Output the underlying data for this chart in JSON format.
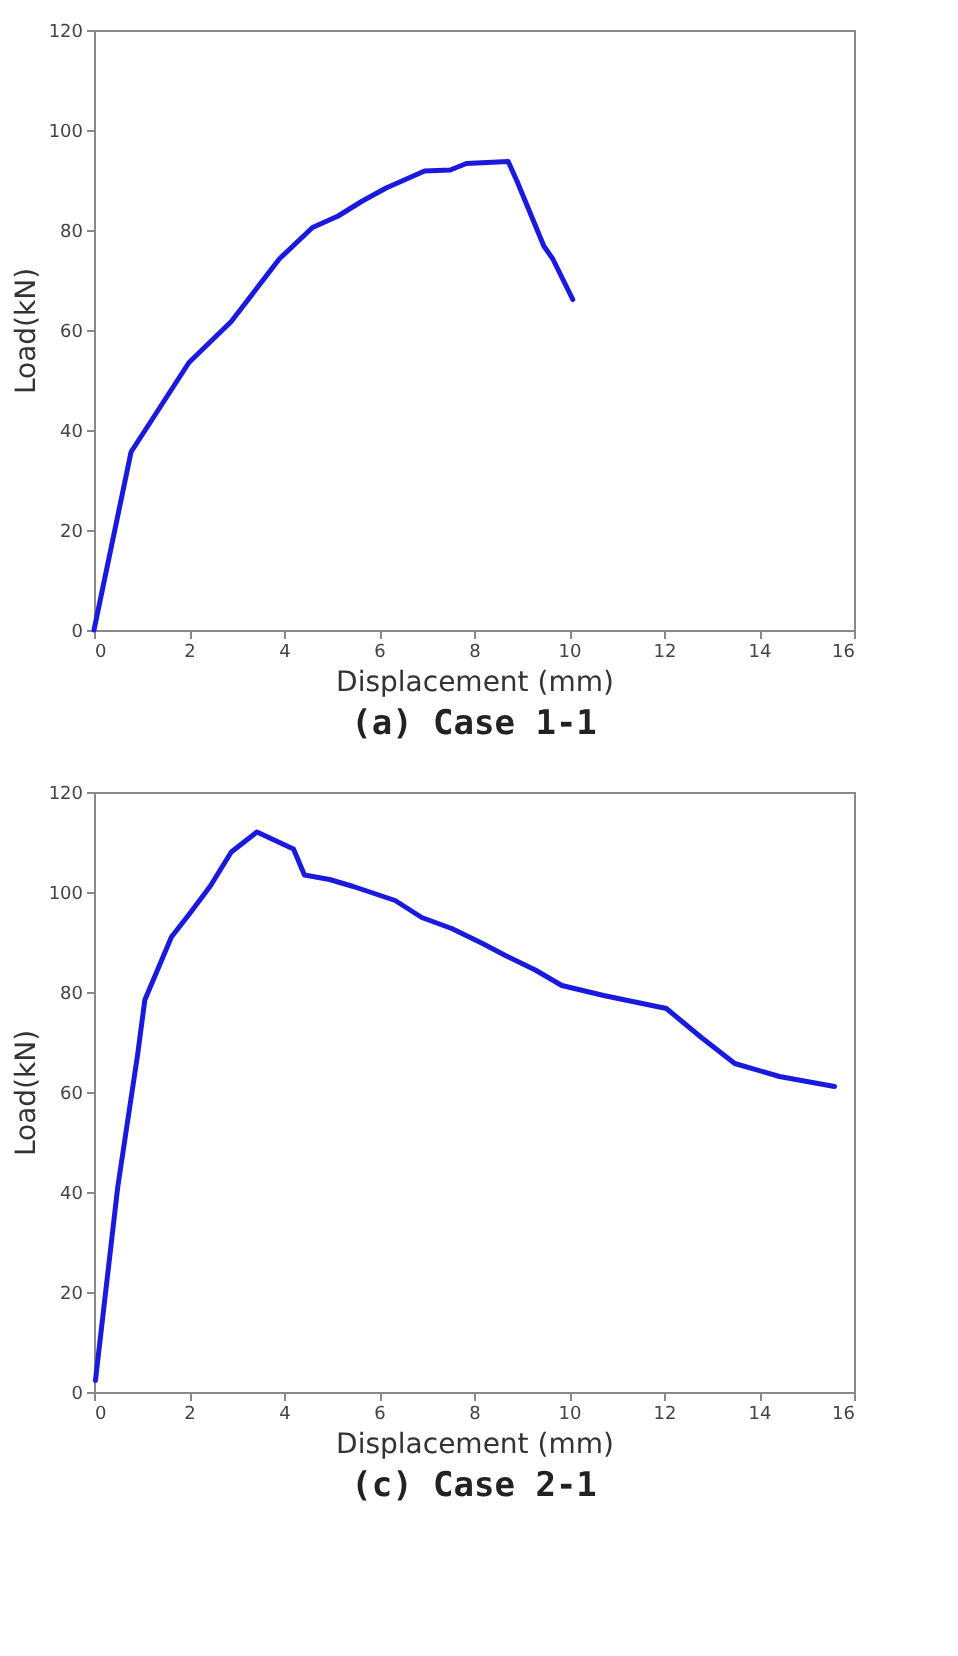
{
  "chart_data": [
    {
      "type": "line",
      "title": "(a) Case 1-1",
      "xlabel": "Displacement (mm)",
      "ylabel": "Load(kN)",
      "xlim": [
        0,
        16
      ],
      "ylim": [
        0,
        120
      ],
      "xticks": [
        0,
        2,
        4,
        6,
        8,
        10,
        12,
        14,
        16
      ],
      "yticks": [
        0,
        20,
        40,
        60,
        80,
        100,
        120
      ],
      "grid": false,
      "marker": "none",
      "line_style": "solid",
      "series": [
        {
          "color": "#1a1adc",
          "x": [
            0,
            0.78,
            2.0,
            2.89,
            3.9,
            4.6,
            5.14,
            5.65,
            6.15,
            6.96,
            7.5,
            7.84,
            8.72,
            8.9,
            9.47,
            9.66,
            10.08
          ],
          "values": [
            0,
            35.6,
            53.5,
            61.7,
            74.2,
            80.5,
            82.8,
            85.8,
            88.4,
            91.8,
            92,
            93.3,
            93.7,
            89.9,
            76.8,
            74.2,
            66.1
          ]
        }
      ]
    },
    {
      "type": "line",
      "title": "(c) Case 2-1",
      "xlabel": "Displacement (mm)",
      "ylabel": "Load(kN)",
      "xlim": [
        0,
        16
      ],
      "ylim": [
        0,
        120
      ],
      "xticks": [
        0,
        2,
        4,
        6,
        8,
        10,
        12,
        14,
        16
      ],
      "yticks": [
        0,
        20,
        40,
        60,
        80,
        100,
        120
      ],
      "grid": false,
      "marker": "none",
      "line_style": "solid",
      "series": [
        {
          "color": "#1a1adc",
          "x": [
            0.03,
            0.5,
            0.92,
            1.07,
            1.63,
            2.0,
            2.45,
            2.89,
            3.43,
            4.2,
            4.43,
            4.96,
            5.46,
            6.34,
            6.9,
            7.53,
            8.16,
            8.66,
            9.29,
            9.85,
            10.73,
            12.05,
            12.8,
            13.49,
            14.43,
            15.59
          ],
          "values": [
            2.3,
            41,
            67.6,
            78.4,
            91,
            95.5,
            101.2,
            108,
            112,
            108.6,
            103.4,
            102.5,
            101.1,
            98.3,
            94.9,
            92.7,
            89.8,
            87.3,
            84.4,
            81.3,
            79.3,
            76.7,
            70.8,
            65.7,
            63.1,
            61.1
          ]
        }
      ]
    }
  ]
}
